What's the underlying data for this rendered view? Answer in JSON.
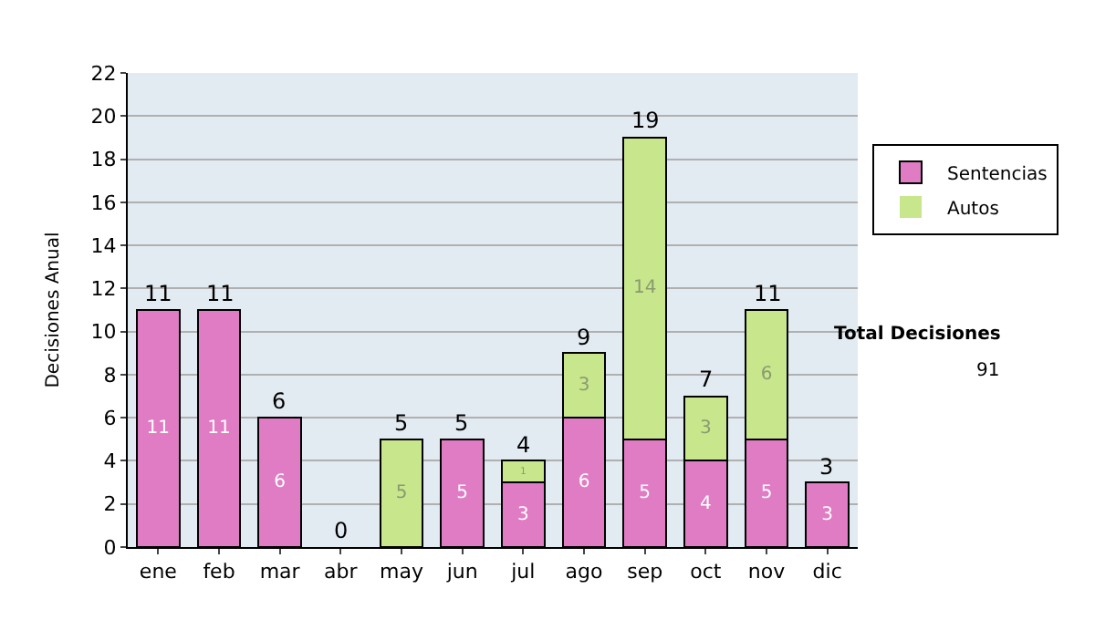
{
  "chart_data": {
    "type": "bar",
    "stacked": true,
    "ylabel": "Decisiones Anual",
    "categories": [
      "ene",
      "feb",
      "mar",
      "abr",
      "may",
      "jun",
      "jul",
      "ago",
      "sep",
      "oct",
      "nov",
      "dic"
    ],
    "series": [
      {
        "name": "Sentencias",
        "color": "#e07cc4",
        "values": [
          11,
          11,
          6,
          0,
          0,
          5,
          3,
          6,
          5,
          4,
          5,
          3
        ],
        "value_labels": [
          "11",
          "11",
          "6",
          null,
          null,
          "5",
          "3",
          "6",
          "5",
          "4",
          "5",
          "3"
        ]
      },
      {
        "name": "Autos",
        "color": "#c8e68c",
        "values": [
          0,
          0,
          0,
          0,
          5,
          0,
          1,
          3,
          14,
          3,
          6,
          0
        ],
        "value_labels": [
          null,
          null,
          null,
          null,
          "5",
          null,
          "1",
          "3",
          "14",
          "3",
          "6",
          null
        ]
      }
    ],
    "totals": [
      "11",
      "11",
      "6",
      "0",
      "5",
      "5",
      "4",
      "9",
      "19",
      "7",
      "11",
      "3"
    ],
    "ylim": [
      0,
      22
    ],
    "yticks": [
      0,
      2,
      4,
      6,
      8,
      10,
      12,
      14,
      16,
      18,
      20,
      22
    ],
    "grid": "y",
    "legend": "right",
    "annotations": [
      "Total Decisiones",
      "91"
    ]
  }
}
